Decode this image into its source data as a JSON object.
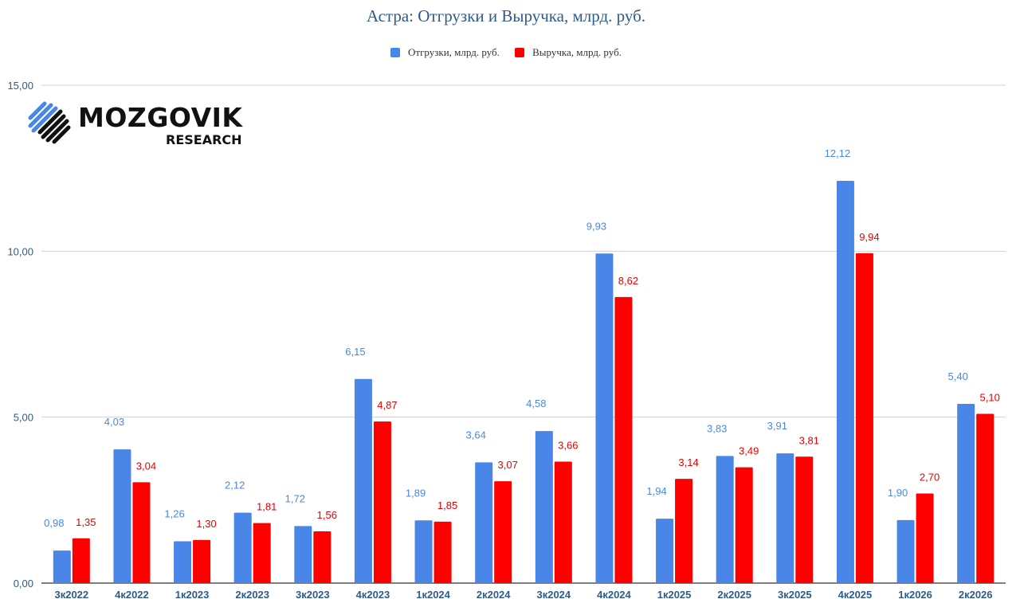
{
  "chart_data": {
    "type": "bar",
    "title": "Астра: Отгрузки и Выручка, млрд. руб.",
    "categories": [
      "3к2022",
      "4к2022",
      "1к2023",
      "2к2023",
      "3к2023",
      "4к2023",
      "1к2024",
      "2к2024",
      "3к2024",
      "4к2024",
      "1к2025",
      "2к2025",
      "3к2025",
      "4к2025",
      "1к2026",
      "2к2026"
    ],
    "series": [
      {
        "name": "Отгрузки, млрд. руб.",
        "color": "#4a86e8",
        "values": [
          0.98,
          4.03,
          1.26,
          2.12,
          1.72,
          6.15,
          1.89,
          3.64,
          4.58,
          9.93,
          1.94,
          3.83,
          3.91,
          12.12,
          1.9,
          5.4
        ],
        "labels": [
          "0,98",
          "4,03",
          "1,26",
          "2,12",
          "1,72",
          "6,15",
          "1,89",
          "3,64",
          "4,58",
          "9,93",
          "1,94",
          "3,83",
          "3,91",
          "12,12",
          "1,90",
          "5,40"
        ]
      },
      {
        "name": "Выручка, млрд. руб.",
        "color": "#ff0000",
        "values": [
          1.35,
          3.04,
          1.3,
          1.81,
          1.56,
          4.87,
          1.85,
          3.07,
          3.66,
          8.62,
          3.14,
          3.49,
          3.81,
          9.94,
          2.7,
          5.1
        ],
        "labels": [
          "1,35",
          "3,04",
          "1,30",
          "1,81",
          "1,56",
          "4,87",
          "1,85",
          "3,07",
          "3,66",
          "8,62",
          "3,14",
          "3,49",
          "3,81",
          "9,94",
          "2,70",
          "5,10"
        ]
      }
    ],
    "ylim": [
      0,
      15
    ],
    "yticks": [
      0,
      5,
      10,
      15
    ],
    "ytick_labels": [
      "0,00",
      "5,00",
      "10,00",
      "15,00"
    ],
    "xlabel": "",
    "ylabel": "",
    "grid": true,
    "legend_position": "top-center"
  },
  "logo": {
    "word": "MOZGOVIK",
    "sub": "RESEARCH"
  }
}
